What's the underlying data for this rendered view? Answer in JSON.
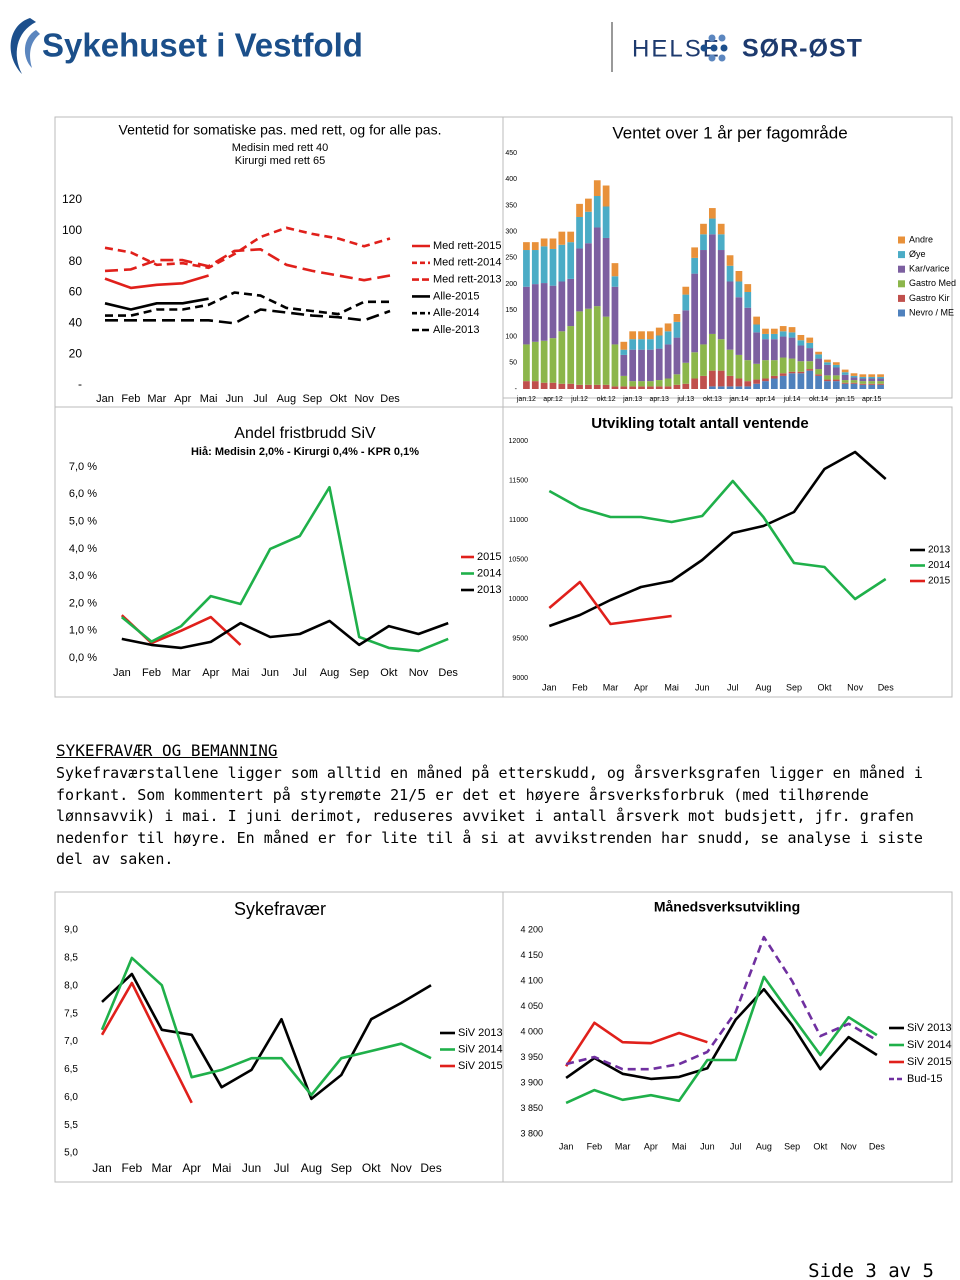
{
  "header": {
    "left_logo": "Sykehuset i Vestfold",
    "right_logo_1": "HELSE",
    "right_logo_2": "SØR-ØST"
  },
  "chart_data": [
    {
      "type": "line",
      "title": "Ventetid for somatiske pas. med rett, og for alle pas.",
      "subtitle": [
        "Medisin med rett 40",
        "Kirurgi med rett 65"
      ],
      "categories": [
        "Jan",
        "Feb",
        "Mar",
        "Apr",
        "Mai",
        "Jun",
        "Jul",
        "Aug",
        "Sep",
        "Okt",
        "Nov",
        "Des"
      ],
      "ylim": [
        0,
        120
      ],
      "yticks": [
        {
          "value": 0,
          "label": "-"
        },
        20,
        40,
        60,
        80,
        100,
        120
      ],
      "grid": false,
      "legend": "right",
      "series": [
        {
          "name": "Med rett-2015",
          "color": "#e0201b",
          "line_style": "solid",
          "values": [
            69,
            63,
            65,
            66,
            71,
            null,
            null,
            null,
            null,
            null,
            null,
            null
          ]
        },
        {
          "name": "Med rett-2014",
          "color": "#e0201b",
          "line_style": "dashed",
          "values": [
            89,
            86,
            78,
            79,
            76,
            85,
            96,
            102,
            98,
            95,
            90,
            95
          ]
        },
        {
          "name": "Med rett-2013",
          "color": "#e0201b",
          "line_style": "long-dashed",
          "values": [
            74,
            75,
            81,
            81,
            77,
            87,
            88,
            78,
            74,
            71,
            68,
            71
          ]
        },
        {
          "name": "Alle-2015",
          "color": "#000000",
          "line_style": "solid",
          "values": [
            53,
            49,
            53,
            53,
            56,
            null,
            null,
            null,
            null,
            null,
            null,
            null
          ]
        },
        {
          "name": "Alle-2014",
          "color": "#000000",
          "line_style": "dashed",
          "values": [
            45,
            45,
            49,
            49,
            52,
            60,
            58,
            50,
            48,
            46,
            54,
            54
          ]
        },
        {
          "name": "Alle-2013",
          "color": "#000000",
          "line_style": "long-dashed",
          "values": [
            42,
            42,
            42,
            42,
            42,
            40,
            49,
            47,
            45,
            44,
            42,
            48
          ]
        }
      ]
    },
    {
      "type": "bar",
      "stacked": true,
      "title": "Ventet over 1 år per fagområde",
      "categories": [
        "jan.12",
        null,
        null,
        "apr.12",
        null,
        null,
        "jul.12",
        null,
        null,
        "okt.12",
        null,
        null,
        "jan.13",
        null,
        null,
        "apr.13",
        null,
        null,
        "jul.13",
        null,
        null,
        "okt.13",
        null,
        null,
        "jan.14",
        null,
        null,
        "apr.14",
        null,
        null,
        "jul.14",
        null,
        null,
        "okt.14",
        null,
        null,
        "jan.15",
        null,
        null,
        "apr.15",
        null
      ],
      "ylim": [
        0,
        450
      ],
      "yticks": [
        {
          "value": 0,
          "label": "-"
        },
        50,
        100,
        150,
        200,
        250,
        300,
        350,
        400,
        450
      ],
      "grid": false,
      "legend": "right",
      "series": [
        {
          "name": "Nevro / ME",
          "color": "#4f81bd",
          "values": [
            0,
            0,
            0,
            0,
            0,
            0,
            0,
            0,
            0,
            0,
            0,
            0,
            0,
            0,
            0,
            0,
            0,
            0,
            0,
            0,
            0,
            5,
            5,
            5,
            5,
            5,
            10,
            15,
            20,
            25,
            30,
            30,
            35,
            25,
            15,
            15,
            10,
            10,
            8,
            8,
            8
          ]
        },
        {
          "name": "Gastro Kir",
          "color": "#c0504d",
          "values": [
            15,
            15,
            12,
            12,
            10,
            10,
            8,
            8,
            8,
            8,
            5,
            5,
            5,
            5,
            5,
            5,
            5,
            8,
            10,
            20,
            25,
            30,
            30,
            20,
            15,
            10,
            8,
            5,
            5,
            5,
            3,
            3,
            3,
            3,
            3,
            3,
            2,
            2,
            2,
            2,
            2
          ]
        },
        {
          "name": "Gastro Med",
          "color": "#8cb64b",
          "values": [
            70,
            75,
            80,
            85,
            100,
            110,
            140,
            145,
            150,
            130,
            80,
            20,
            10,
            10,
            10,
            12,
            15,
            20,
            40,
            50,
            60,
            70,
            60,
            50,
            45,
            40,
            30,
            35,
            30,
            30,
            25,
            20,
            15,
            10,
            8,
            8,
            5,
            5,
            5,
            5,
            5
          ]
        },
        {
          "name": "Kar/varice",
          "color": "#7c5fa0",
          "values": [
            110,
            110,
            110,
            100,
            95,
            90,
            120,
            125,
            150,
            150,
            110,
            40,
            60,
            60,
            60,
            60,
            65,
            70,
            100,
            150,
            180,
            190,
            170,
            130,
            110,
            100,
            60,
            40,
            40,
            40,
            40,
            30,
            25,
            20,
            20,
            15,
            10,
            5,
            5,
            5,
            5
          ]
        },
        {
          "name": "Øye",
          "color": "#4bacc6",
          "values": [
            70,
            65,
            70,
            70,
            70,
            70,
            60,
            60,
            60,
            60,
            20,
            10,
            20,
            20,
            20,
            25,
            25,
            30,
            30,
            30,
            30,
            30,
            30,
            30,
            30,
            30,
            15,
            10,
            10,
            10,
            10,
            10,
            10,
            8,
            5,
            5,
            5,
            3,
            3,
            3,
            3
          ]
        },
        {
          "name": "Andre",
          "color": "#e8913a",
          "values": [
            15,
            15,
            15,
            20,
            25,
            20,
            25,
            25,
            30,
            40,
            25,
            15,
            15,
            15,
            15,
            15,
            15,
            15,
            15,
            20,
            20,
            20,
            20,
            20,
            20,
            15,
            15,
            10,
            10,
            10,
            10,
            10,
            10,
            5,
            5,
            5,
            5,
            5,
            5,
            5,
            5
          ]
        }
      ]
    },
    {
      "type": "line",
      "title": "Andel fristbrudd SiV",
      "subtitle": [
        "Hiå: Medisin 2,0% - Kirurgi 0,4% - KPR 0,1%"
      ],
      "categories": [
        "Jan",
        "Feb",
        "Mar",
        "Apr",
        "Mai",
        "Jun",
        "Jul",
        "Aug",
        "Sep",
        "Okt",
        "Nov",
        "Des"
      ],
      "ylim": [
        0,
        7
      ],
      "yticks": [
        {
          "value": 0,
          "label": "0,0 %"
        },
        {
          "value": 1,
          "label": "1,0 %"
        },
        {
          "value": 2,
          "label": "2,0 %"
        },
        {
          "value": 3,
          "label": "3,0 %"
        },
        {
          "value": 4,
          "label": "4,0 %"
        },
        {
          "value": 5,
          "label": "5,0 %"
        },
        {
          "value": 6,
          "label": "6,0 %"
        },
        {
          "value": 7,
          "label": "7,0 %"
        }
      ],
      "grid": false,
      "legend": "right",
      "series": [
        {
          "name": "2015",
          "color": "#e0201b",
          "line_style": "solid",
          "values": [
            1.57,
            0.55,
            1.0,
            1.5,
            0.48,
            null,
            null,
            null,
            null,
            null,
            null,
            null
          ]
        },
        {
          "name": "2014",
          "color": "#1fb04a",
          "line_style": "solid",
          "values": [
            1.5,
            0.6,
            1.17,
            2.27,
            1.98,
            4.0,
            4.47,
            6.26,
            0.77,
            0.37,
            0.26,
            0.7
          ]
        },
        {
          "name": "2013",
          "color": "#000000",
          "line_style": "solid",
          "values": [
            0.7,
            0.48,
            0.37,
            0.59,
            1.28,
            0.77,
            0.88,
            1.36,
            0.48,
            1.17,
            0.88,
            1.28
          ]
        }
      ]
    },
    {
      "type": "line",
      "title": "Utvikling totalt antall ventende",
      "categories": [
        "Jan",
        "Feb",
        "Mar",
        "Apr",
        "Mai",
        "Jun",
        "Jul",
        "Aug",
        "Sep",
        "Okt",
        "Nov",
        "Des"
      ],
      "ylim": [
        9000,
        12000
      ],
      "yticks": [
        9000,
        9500,
        10000,
        10500,
        11000,
        11500,
        12000
      ],
      "grid": false,
      "legend": "right",
      "series": [
        {
          "name": "2013",
          "color": "#000000",
          "line_style": "solid",
          "values": [
            9658,
            9797,
            9987,
            10152,
            10228,
            10494,
            10835,
            10924,
            11101,
            11646,
            11861,
            11519
          ]
        },
        {
          "name": "2014",
          "color": "#1fb04a",
          "line_style": "solid",
          "values": [
            11367,
            11152,
            11038,
            11038,
            10975,
            11051,
            11494,
            11038,
            10456,
            10405,
            10000,
            10253
          ]
        },
        {
          "name": "2015",
          "color": "#e0201b",
          "line_style": "solid",
          "values": [
            9886,
            10215,
            9684,
            9734,
            9785,
            null,
            null,
            null,
            null,
            null,
            null,
            null
          ]
        }
      ]
    },
    {
      "type": "line",
      "title": "Sykefravær",
      "categories": [
        "Jan",
        "Feb",
        "Mar",
        "Apr",
        "Mai",
        "Jun",
        "Jul",
        "Aug",
        "Sep",
        "Okt",
        "Nov",
        "Des"
      ],
      "ylim": [
        5,
        9
      ],
      "yticks": [
        {
          "value": 5,
          "label": "5,0"
        },
        {
          "value": 5.5,
          "label": "5,5"
        },
        {
          "value": 6,
          "label": "6,0"
        },
        {
          "value": 6.5,
          "label": "6,5"
        },
        {
          "value": 7,
          "label": "7,0"
        },
        {
          "value": 7.5,
          "label": "7,5"
        },
        {
          "value": 8,
          "label": "8,0"
        },
        {
          "value": 8.5,
          "label": "8,5"
        },
        {
          "value": 9,
          "label": "9,0"
        }
      ],
      "grid": false,
      "legend": "right",
      "series": [
        {
          "name": "SiV 2013",
          "color": "#000000",
          "line_style": "solid",
          "values": [
            7.71,
            8.21,
            7.21,
            7.12,
            6.18,
            6.49,
            7.4,
            5.97,
            6.4,
            7.4,
            7.69,
            8.01
          ]
        },
        {
          "name": "SiV 2014",
          "color": "#1fb04a",
          "line_style": "solid",
          "values": [
            7.21,
            8.5,
            8.01,
            6.36,
            6.49,
            6.7,
            6.7,
            6.04,
            6.7,
            6.83,
            6.96,
            6.7
          ]
        },
        {
          "name": "SiV 2015",
          "color": "#e0201b",
          "line_style": "solid",
          "values": [
            7.12,
            8.05,
            6.97,
            5.9,
            null,
            null,
            null,
            null,
            null,
            null,
            null,
            null
          ]
        }
      ]
    },
    {
      "type": "line",
      "title": "Månedsverksutvikling",
      "categories": [
        "Jan",
        "Feb",
        "Mar",
        "Apr",
        "Mai",
        "Jun",
        "Jul",
        "Aug",
        "Sep",
        "Okt",
        "Nov",
        "Des"
      ],
      "ylim": [
        3800,
        4200
      ],
      "yticks": [
        {
          "value": 3800,
          "label": "3 800"
        },
        {
          "value": 3850,
          "label": "3 850"
        },
        {
          "value": 3900,
          "label": "3 900"
        },
        {
          "value": 3950,
          "label": "3 950"
        },
        {
          "value": 4000,
          "label": "4 000"
        },
        {
          "value": 4050,
          "label": "4 050"
        },
        {
          "value": 4100,
          "label": "4 100"
        },
        {
          "value": 4150,
          "label": "4 150"
        },
        {
          "value": 4200,
          "label": "4 200"
        }
      ],
      "grid": false,
      "legend": "right",
      "series": [
        {
          "name": "SiV 2013",
          "color": "#000000",
          "line_style": "solid",
          "values": [
            3910,
            3949,
            3918,
            3908,
            3912,
            3929,
            4024,
            4084,
            4014,
            3927,
            3990,
            3955
          ]
        },
        {
          "name": "SiV 2014",
          "color": "#1fb04a",
          "line_style": "solid",
          "values": [
            3861,
            3886,
            3867,
            3876,
            3865,
            3945,
            3945,
            4108,
            4031,
            3955,
            4029,
            3994
          ]
        },
        {
          "name": "SiV 2015",
          "color": "#e0201b",
          "line_style": "solid",
          "values": [
            3933,
            4018,
            3980,
            3978,
            3998,
            3980,
            null,
            null,
            null,
            null,
            null,
            null
          ]
        },
        {
          "name": "Bud-15",
          "color": "#7030a0",
          "line_style": "dashed",
          "values": [
            3937,
            3951,
            3927,
            3927,
            3937,
            3961,
            4039,
            4186,
            4100,
            3992,
            4016,
            3984
          ]
        }
      ]
    }
  ],
  "section": {
    "heading": "SYKEFRAVÆR OG BEMANNING",
    "paragraph": "Sykefraværstallene ligger som alltid en måned på etterskudd, og årsverksgrafen ligger en måned i forkant. Som kommentert på styremøte 21/5 er det et høyere årsverksforbruk (med tilhørende lønnsavvik) i mai. I juni derimot, reduseres avviket i antall årsverk mot budsjett, jfr. grafen nedenfor til høyre. En måned er for lite til å si at avvikstrenden har snudd, se analyse i siste del av saken."
  },
  "footer": {
    "page": "Side 3 av 5"
  }
}
